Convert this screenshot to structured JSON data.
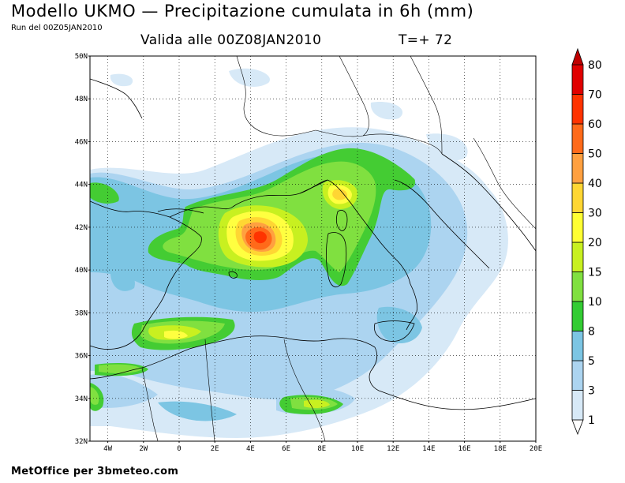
{
  "header": {
    "title": "Modello UKMO — Precipitazione cumulata in 6h (mm)",
    "run": "Run del 00Z05JAN2010",
    "valid": "Valida alle 00Z08JAN2010",
    "tstep": "T=+ 72"
  },
  "footer": {
    "credit": "MetOffice per 3bmeteo.com"
  },
  "map": {
    "lon_range": [
      -5,
      20
    ],
    "lat_range": [
      32,
      50
    ],
    "lat_ticks": [
      "50N",
      "48N",
      "46N",
      "44N",
      "42N",
      "40N",
      "38N",
      "36N",
      "34N",
      "32N"
    ],
    "lon_ticks": [
      "4W",
      "2W",
      "0",
      "2E",
      "4E",
      "6E",
      "8E",
      "10E",
      "12E",
      "14E",
      "16E",
      "18E",
      "20E"
    ],
    "grid": true
  },
  "legend": {
    "levels": [
      "1",
      "3",
      "5",
      "8",
      "10",
      "15",
      "20",
      "30",
      "40",
      "50",
      "60",
      "70",
      "80"
    ],
    "colors": [
      "#ffffff",
      "#d7e9f7",
      "#acd4f0",
      "#7cc5e3",
      "#33cc33",
      "#80e040",
      "#c8f020",
      "#ffff33",
      "#ffd633",
      "#ffa040",
      "#ff6a1a",
      "#ff3300",
      "#e00000",
      "#c00000"
    ]
  },
  "precip_colors": {
    "c1": "#d7e9f7",
    "c3": "#acd4f0",
    "c5": "#7cc5e3",
    "c8": "#44cc33",
    "c10": "#80e040",
    "c15": "#c8f020",
    "c20": "#ffff40",
    "c30": "#ffd633",
    "c40": "#ffa040",
    "c50": "#ff6a1a",
    "c60": "#ff3300"
  }
}
